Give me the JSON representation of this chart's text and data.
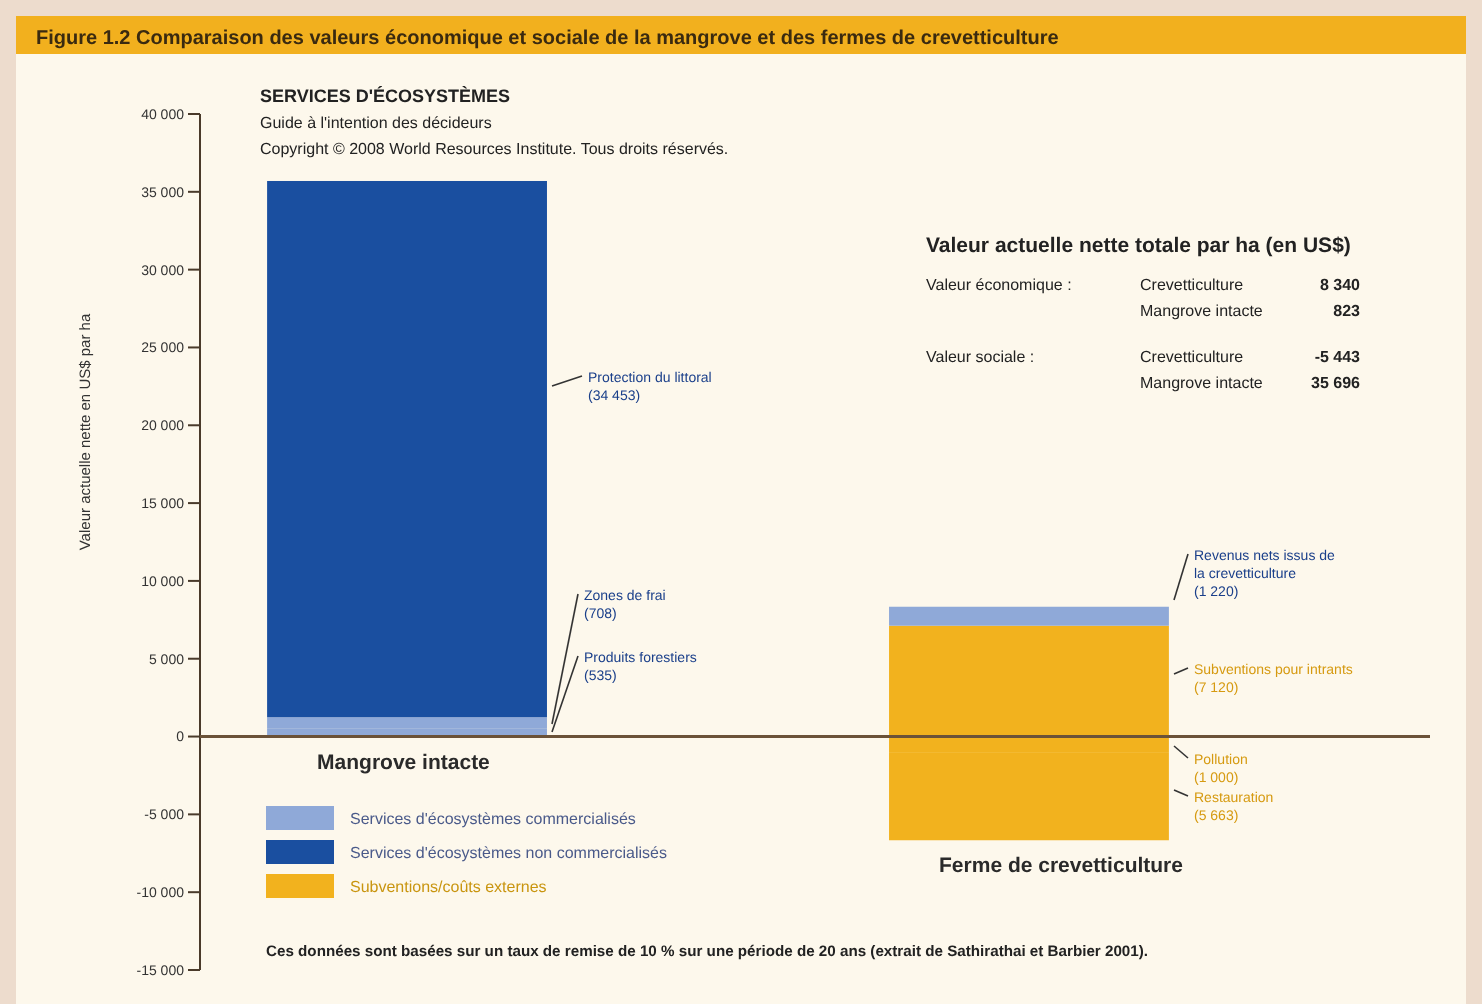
{
  "chart_data": {
    "type": "bar",
    "stacked": true,
    "title": "Figure 1.2  Comparaison des valeurs économique et sociale de la mangrove et des fermes de crevetticulture",
    "ylabel": "Valeur actuelle nette en US$ par ha",
    "categories": [
      "Mangrove intacte",
      "Ferme de crevetticulture"
    ],
    "series": [
      {
        "name": "Services d'écosystèmes commercialisés",
        "color": "#8fa9d8",
        "values": [
          535,
          null
        ]
      },
      {
        "color": "#8fa9d8",
        "values": [
          708,
          null
        ]
      },
      {
        "name": "Services d'écosystèmes non commercialisés",
        "color": "#1a4fa0",
        "values": [
          34453,
          null
        ]
      },
      {
        "name": "Subventions/coûts externes",
        "color": "#f2b21e",
        "values": [
          null,
          7120
        ]
      },
      {
        "color": "#8fa9d8",
        "values": [
          null,
          1220
        ]
      },
      {
        "color": "#f2b21e",
        "values": [
          null,
          -1000
        ]
      },
      {
        "color": "#f2b21e",
        "values": [
          null,
          -5663
        ]
      }
    ],
    "ylim": [
      -15000,
      40000
    ],
    "yticks": [
      {
        "value": 40000,
        "label": "40 000"
      },
      {
        "value": 35000,
        "label": "35 000"
      },
      {
        "value": 30000,
        "label": "30 000"
      },
      {
        "value": 25000,
        "label": "25 000"
      },
      {
        "value": 20000,
        "label": "20 000"
      },
      {
        "value": 15000,
        "label": "15 000"
      },
      {
        "value": 10000,
        "label": "10 000"
      },
      {
        "value": 5000,
        "label": "5 000"
      },
      0,
      {
        "value": -5000,
        "label": "-5 000"
      },
      {
        "value": -10000,
        "label": "-10 000"
      },
      {
        "value": -15000,
        "label": "-15 000"
      }
    ],
    "grid": false,
    "ref_lines": [
      {
        "axis": "y",
        "value": 0,
        "color": "#6b5238"
      }
    ],
    "legend": "bottom left",
    "annotations": [
      "Protection du littoral\n(34 453)",
      "Zones de frai\n(708)",
      "Produits forestiers\n(535)",
      "Revenus nets issus de\nla crevetticulture\n(1 220)",
      "Subventions pour intrants\n(7 120)",
      "Pollution\n(1 000)",
      "Restauration\n(5 663)",
      "SERVICES D'ÉCOSYSTÈMES",
      "Guide à l'intention des décideurs",
      "Copyright © 2008 World Resources Institute. Tous droits réservés.",
      "Valeur actuelle nette totale par ha (en US$)",
      "Valeur économique :",
      "Crevetticulture",
      "8 340",
      "Mangrove intacte",
      "823",
      "Valeur sociale :",
      "Crevetticulture",
      "-5 443",
      "Mangrove intacte",
      "35 696",
      "Ces données sont basées sur un taux de remise de 10 % sur une période de 20 ans (extrait de Sathirathai et Barbier 2001)."
    ]
  }
}
